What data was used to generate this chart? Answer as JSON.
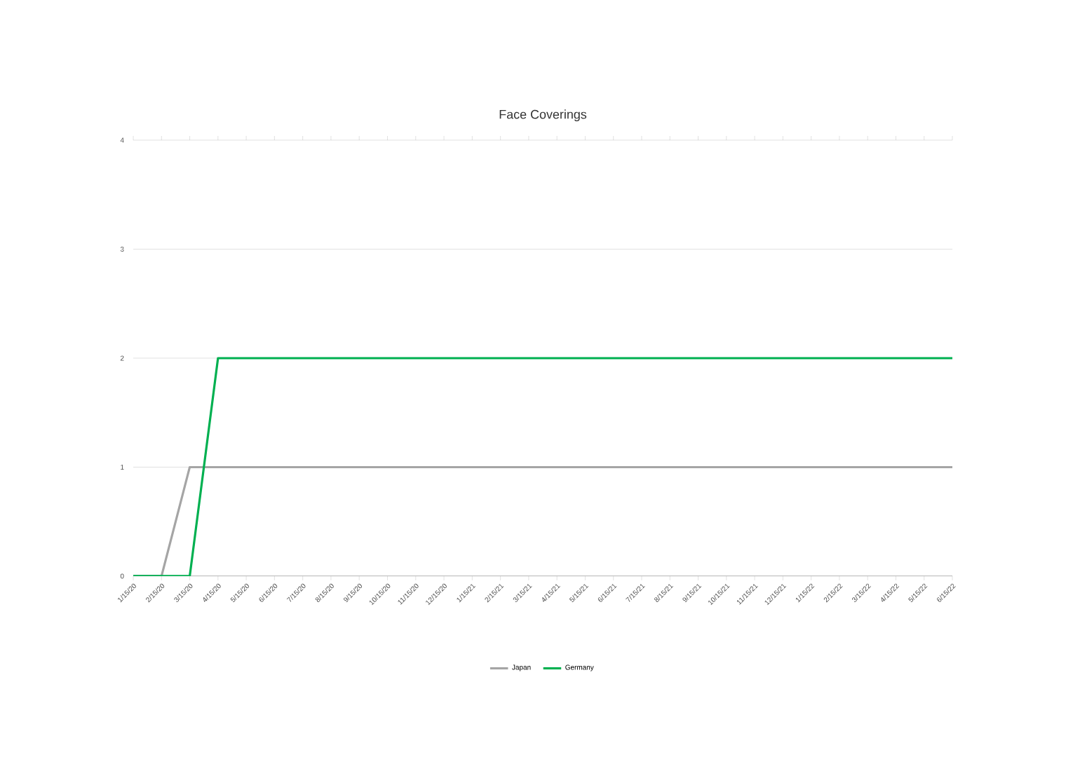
{
  "chart_data": {
    "type": "line",
    "title": "Face Coverings",
    "categories": [
      "1/15/20",
      "2/15/20",
      "3/15/20",
      "4/15/20",
      "5/15/20",
      "6/15/20",
      "7/15/20",
      "8/15/20",
      "9/15/20",
      "10/15/20",
      "11/15/20",
      "12/15/20",
      "1/15/21",
      "2/15/21",
      "3/15/21",
      "4/15/21",
      "5/15/21",
      "6/15/21",
      "7/15/21",
      "8/15/21",
      "9/15/21",
      "10/15/21",
      "11/15/21",
      "12/15/21",
      "1/15/22",
      "2/15/22",
      "3/15/22",
      "4/15/22",
      "5/15/22",
      "6/15/22"
    ],
    "series": [
      {
        "name": "Japan",
        "color": "#a5a5a5",
        "values": [
          0,
          0,
          1,
          1,
          1,
          1,
          1,
          1,
          1,
          1,
          1,
          1,
          1,
          1,
          1,
          1,
          1,
          1,
          1,
          1,
          1,
          1,
          1,
          1,
          1,
          1,
          1,
          1,
          1,
          1
        ]
      },
      {
        "name": "Germany",
        "color": "#00b050",
        "values": [
          0,
          0,
          0,
          2,
          2,
          2,
          2,
          2,
          2,
          2,
          2,
          2,
          2,
          2,
          2,
          2,
          2,
          2,
          2,
          2,
          2,
          2,
          2,
          2,
          2,
          2,
          2,
          2,
          2,
          2
        ]
      }
    ],
    "ylim": [
      0,
      4
    ],
    "yticks": [
      0,
      1,
      2,
      3,
      4
    ],
    "grid": "y",
    "legend": "bottom",
    "marker": "none",
    "line_style": "solid"
  }
}
